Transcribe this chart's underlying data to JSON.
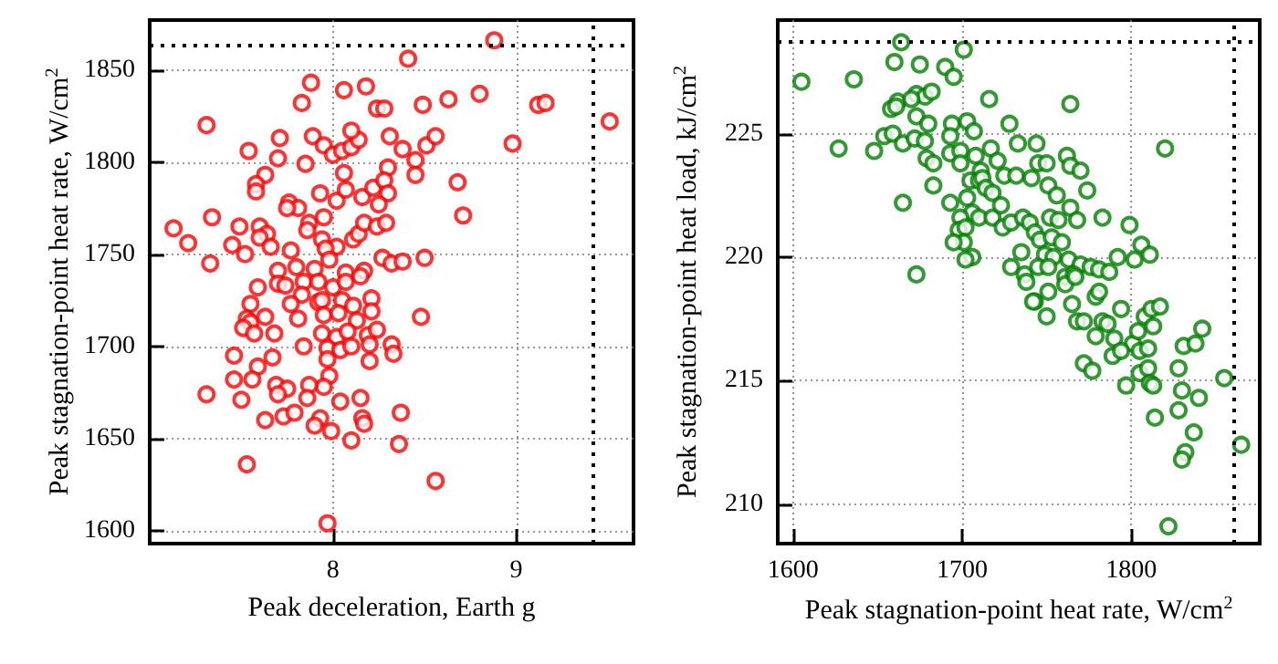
{
  "chart_data": [
    {
      "type": "scatter",
      "xlabel": "Peak deceleration, Earth g",
      "ylabel": "Peak stagnation-point heat rate, W/cm$^{2}$",
      "color": "#ff0000",
      "marker": "circle",
      "grid": true,
      "xlim": [
        7.0,
        9.64
      ],
      "ylim": [
        1593,
        1877
      ],
      "xticks": [
        8,
        9
      ],
      "yticks": [
        1600,
        1650,
        1700,
        1750,
        1800,
        1850
      ],
      "ref_lines": [
        {
          "axis": "x",
          "value": 9.42,
          "color": "#000000",
          "line_style": "dotted"
        },
        {
          "axis": "y",
          "value": 1863,
          "color": "#000000",
          "line_style": "dotted"
        }
      ],
      "x": [
        8.88,
        8.41,
        7.88,
        8.06,
        8.18,
        7.83,
        8.24,
        8.28,
        8.49,
        8.63,
        8.8,
        9.12,
        9.16,
        9.51,
        7.31,
        7.71,
        7.89,
        7.95,
        8.0,
        8.05,
        8.1,
        8.14,
        8.1,
        8.31,
        8.38,
        8.51,
        8.56,
        8.98,
        7.54,
        7.7,
        7.85,
        8.45,
        8.45,
        7.63,
        8.06,
        8.3,
        7.58,
        7.58,
        7.93,
        8.02,
        8.07,
        8.16,
        8.22,
        8.28,
        8.3,
        8.68,
        8.71,
        7.76,
        7.81,
        7.75,
        7.34,
        7.87,
        7.95,
        8.25,
        7.49,
        7.6,
        7.64,
        7.6,
        7.66,
        7.13,
        7.21,
        7.45,
        7.52,
        7.77,
        7.86,
        7.94,
        8.02,
        7.96,
        8.11,
        8.14,
        8.17,
        8.24,
        8.29,
        7.33,
        8.27,
        8.32,
        8.38,
        8.5,
        7.7,
        7.8,
        7.9,
        7.98,
        8.07,
        8.17,
        7.59,
        7.7,
        7.74,
        7.84,
        7.92,
        8.0,
        8.07,
        8.15,
        7.55,
        7.83,
        7.77,
        7.92,
        7.94,
        8.05,
        8.11,
        8.21,
        8.21,
        7.53,
        7.55,
        7.51,
        7.57,
        7.63,
        7.81,
        7.95,
        8.03,
        8.13,
        8.48,
        7.68,
        7.94,
        8.02,
        8.08,
        8.19,
        8.24,
        8.32,
        7.84,
        7.97,
        8.04,
        8.1,
        8.2,
        7.46,
        7.67,
        7.97,
        8.2,
        8.33,
        7.59,
        7.46,
        7.56,
        7.98,
        7.95,
        7.87,
        7.69,
        7.75,
        7.7,
        7.31,
        7.5,
        7.86,
        8.04,
        8.15,
        8.37,
        7.63,
        7.73,
        7.79,
        7.93,
        7.9,
        8.16,
        8.17,
        7.99,
        8.1,
        8.36,
        7.53,
        8.56,
        7.97
      ],
      "values": [
        1866,
        1856,
        1843,
        1839,
        1841,
        1832,
        1829,
        1829,
        1831,
        1834,
        1837,
        1831,
        1832,
        1822,
        1820,
        1813,
        1814,
        1809,
        1804,
        1806,
        1808,
        1812,
        1817,
        1814,
        1807,
        1809,
        1814,
        1810,
        1806,
        1802,
        1799,
        1801,
        1793,
        1793,
        1794,
        1797,
        1788,
        1784,
        1783,
        1779,
        1785,
        1781,
        1786,
        1790,
        1783,
        1789,
        1771,
        1778,
        1775,
        1775,
        1770,
        1767,
        1770,
        1777,
        1765,
        1765,
        1761,
        1759,
        1754,
        1764,
        1756,
        1755,
        1750,
        1752,
        1763,
        1758,
        1754,
        1753,
        1758,
        1761,
        1767,
        1765,
        1767,
        1745,
        1748,
        1745,
        1746,
        1748,
        1741,
        1743,
        1742,
        1747,
        1740,
        1741,
        1732,
        1734,
        1733,
        1735,
        1735,
        1732,
        1735,
        1738,
        1723,
        1728,
        1723,
        1724,
        1725,
        1725,
        1722,
        1726,
        1719,
        1715,
        1713,
        1710,
        1707,
        1716,
        1715,
        1717,
        1718,
        1714,
        1716,
        1707,
        1707,
        1705,
        1708,
        1706,
        1709,
        1701,
        1700,
        1699,
        1698,
        1700,
        1701,
        1695,
        1694,
        1693,
        1692,
        1696,
        1689,
        1682,
        1682,
        1684,
        1678,
        1679,
        1679,
        1677,
        1674,
        1674,
        1671,
        1672,
        1670,
        1672,
        1664,
        1660,
        1662,
        1664,
        1661,
        1657,
        1661,
        1658,
        1654,
        1649,
        1647,
        1636,
        1627,
        1604
      ]
    },
    {
      "type": "scatter",
      "xlabel": "Peak stagnation-point heat rate, W/cm$^{2}$",
      "ylabel": "Peak stagnation-point heat load, kJ/cm$^{2}$",
      "color": "#008000",
      "marker": "circle",
      "grid": true,
      "xlim": [
        1591,
        1876
      ],
      "ylim": [
        208.4,
        229.6
      ],
      "xticks": [
        1600,
        1700,
        1800
      ],
      "yticks": [
        210,
        215,
        220,
        225
      ],
      "ref_lines": [
        {
          "axis": "x",
          "value": 1861,
          "color": "#000000",
          "line_style": "dotted"
        },
        {
          "axis": "y",
          "value": 228.7,
          "color": "#000000",
          "line_style": "dotted"
        }
      ],
      "x": [
        1664,
        1701,
        1605,
        1636,
        1660,
        1675,
        1690,
        1695,
        1673,
        1678,
        1682,
        1662,
        1658,
        1661,
        1670,
        1716,
        1764,
        1673,
        1680,
        1694,
        1703,
        1707,
        1728,
        1627,
        1648,
        1654,
        1659,
        1665,
        1672,
        1678,
        1693,
        1693,
        1699,
        1699,
        1679,
        1683,
        1683,
        1665,
        1693,
        1708,
        1717,
        1721,
        1711,
        1705,
        1710,
        1712,
        1714,
        1718,
        1725,
        1732,
        1733,
        1741,
        1744,
        1745,
        1750,
        1751,
        1756,
        1762,
        1764,
        1770,
        1774,
        1764,
        1703,
        1706,
        1710,
        1699,
        1698,
        1702,
        1701,
        1695,
        1706,
        1702,
        1718,
        1723,
        1724,
        1729,
        1736,
        1740,
        1743,
        1752,
        1757,
        1768,
        1783,
        1799,
        1806,
        1802,
        1811,
        1792,
        1735,
        1746,
        1753,
        1759,
        1749,
        1754,
        1763,
        1770,
        1776,
        1781,
        1787,
        1729,
        1737,
        1745,
        1751,
        1761,
        1766,
        1820,
        1673,
        1738,
        1743,
        1742,
        1751,
        1750,
        1761,
        1767,
        1765,
        1768,
        1772,
        1779,
        1781,
        1779,
        1783,
        1786,
        1790,
        1794,
        1801,
        1804,
        1808,
        1812,
        1817,
        1813,
        1805,
        1810,
        1789,
        1794,
        1772,
        1777,
        1797,
        1805,
        1810,
        1811,
        1813,
        1828,
        1831,
        1838,
        1842,
        1855,
        1830,
        1840,
        1828,
        1814,
        1837,
        1832,
        1830,
        1865,
        1822
      ],
      "values": [
        228.7,
        228.4,
        227.1,
        227.2,
        227.9,
        227.8,
        227.7,
        227.3,
        226.6,
        226.5,
        226.7,
        226.3,
        226.0,
        226.1,
        226.4,
        226.4,
        226.2,
        225.7,
        225.4,
        225.4,
        225.5,
        225.1,
        225.4,
        224.4,
        224.3,
        224.9,
        225.0,
        224.6,
        224.8,
        224.7,
        224.9,
        224.2,
        224.3,
        223.8,
        224.0,
        223.8,
        222.9,
        222.2,
        222.2,
        224.1,
        224.4,
        223.9,
        223.5,
        223.1,
        223.1,
        223.2,
        222.8,
        222.6,
        223.3,
        223.3,
        224.6,
        223.2,
        224.6,
        223.8,
        223.8,
        222.9,
        222.5,
        224.1,
        223.7,
        223.5,
        222.7,
        222.0,
        222.4,
        221.8,
        221.6,
        221.6,
        221.1,
        221.2,
        220.6,
        220.6,
        220.0,
        219.9,
        221.6,
        222.1,
        221.2,
        221.4,
        221.6,
        221.4,
        221.0,
        221.6,
        221.5,
        221.5,
        221.6,
        221.3,
        220.5,
        219.9,
        220.1,
        220.0,
        220.2,
        220.7,
        220.8,
        220.6,
        220.1,
        220.0,
        219.9,
        219.7,
        219.6,
        219.5,
        219.4,
        219.6,
        219.3,
        219.6,
        219.6,
        219.2,
        219.3,
        224.4,
        219.3,
        219.0,
        218.2,
        218.2,
        218.6,
        217.6,
        218.9,
        219.2,
        218.1,
        217.4,
        217.4,
        218.4,
        218.6,
        216.8,
        217.4,
        217.3,
        216.7,
        217.9,
        216.5,
        217.0,
        217.6,
        217.9,
        218.0,
        217.2,
        216.2,
        216.3,
        216.0,
        216.2,
        215.7,
        215.4,
        214.8,
        215.3,
        215.5,
        214.9,
        214.8,
        215.5,
        216.4,
        216.5,
        217.1,
        215.1,
        214.6,
        214.3,
        213.8,
        213.5,
        212.9,
        212.1,
        211.8,
        212.4,
        209.1
      ]
    }
  ]
}
